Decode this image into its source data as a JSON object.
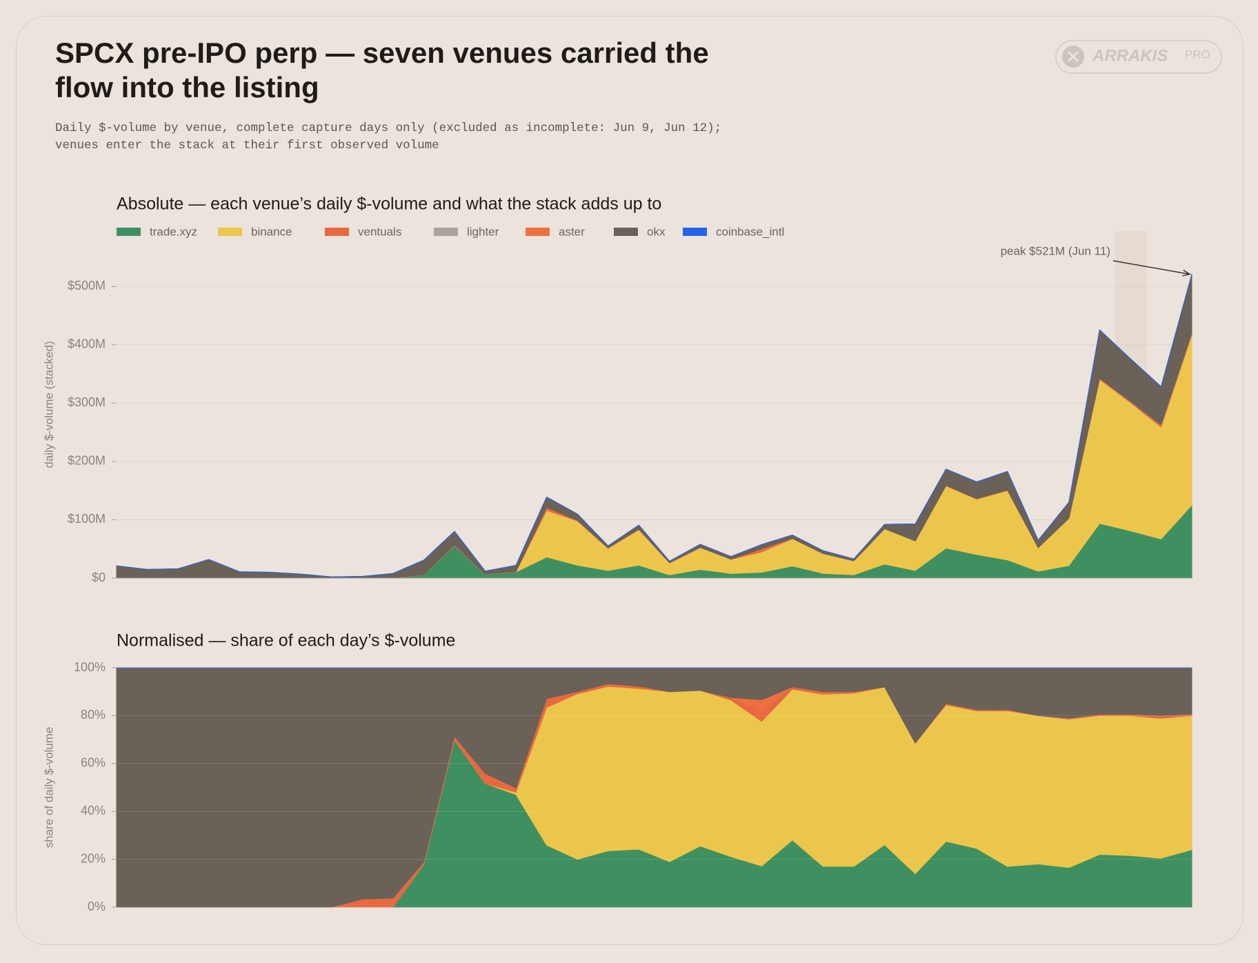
{
  "header": {
    "title": "SPCX pre-IPO perp — seven venues carried the flow into the listing",
    "subtitle": "Daily $-volume by venue, complete capture days only (excluded as incomplete: Jun 9, Jun 12); venues enter the stack at their first observed volume"
  },
  "brand": {
    "name": "ARRAKIS",
    "badge": "PRO"
  },
  "chart_data": [
    {
      "type": "stacked_area",
      "title": "Absolute — each venue’s daily $-volume and what the stack adds up to",
      "ylabel": "daily $-volume (stacked)",
      "annotation": "peak $521M (Jun 11)",
      "categories": [
        null,
        null,
        null,
        null,
        null,
        null,
        null,
        null,
        null,
        null,
        null,
        null,
        null,
        null,
        null,
        null,
        null,
        null,
        null,
        null,
        null,
        null,
        null,
        null,
        null,
        null,
        null,
        null,
        null,
        null,
        null,
        null,
        null,
        null,
        null,
        null
      ],
      "series": [
        {
          "name": "trade.xyz",
          "color": "#3f9060",
          "values": [
            0,
            0,
            0,
            0,
            0,
            0,
            0,
            0,
            0,
            0,
            5.5,
            56,
            6.2,
            10.3,
            36,
            22,
            13,
            22,
            5.5,
            14.8,
            7.8,
            9.9,
            20.7,
            8,
            5.6,
            24,
            13,
            51.4,
            40.4,
            31.1,
            11.7,
            21.5,
            93.7,
            81,
            67,
            125
          ]
        },
        {
          "name": "binance",
          "color": "#ecc64a",
          "values": [
            0,
            0,
            0,
            0,
            0,
            0,
            0,
            0,
            0,
            0,
            0,
            0,
            0,
            0.2,
            80,
            76,
            38,
            61,
            20.6,
            37.7,
            24.2,
            34.8,
            46.6,
            33.8,
            23.8,
            60.7,
            50.7,
            106.6,
            94.9,
            119,
            40.3,
            80.6,
            247,
            220,
            192,
            292
          ]
        },
        {
          "name": "ventuals",
          "color": "#e8693f",
          "values": [
            0,
            0,
            0,
            0,
            0,
            0,
            0,
            0,
            0.1,
            0.3,
            0.3,
            1.2,
            0.5,
            0.4,
            5,
            1,
            0.6,
            0.9,
            0,
            0,
            0.4,
            2.6,
            0.7,
            0.5,
            0.2,
            0,
            0,
            1,
            0.8,
            0.9,
            0,
            0.6,
            2,
            2,
            3.3,
            2.6
          ]
        },
        {
          "name": "lighter",
          "color": "#aca39b",
          "values": [
            0,
            0,
            0,
            0,
            0,
            0,
            0,
            0,
            0,
            0,
            0,
            0,
            0,
            0,
            0,
            0,
            0,
            0,
            0,
            0,
            0,
            0,
            0,
            0,
            0,
            0,
            0,
            0,
            0,
            0,
            0,
            0,
            0,
            0.3,
            0.5,
            0.5
          ]
        },
        {
          "name": "aster",
          "color": "#ee7040",
          "values": [
            0,
            0,
            0,
            0,
            0,
            0,
            0,
            0,
            0,
            0,
            0,
            0,
            0,
            0,
            0,
            0,
            0,
            0,
            0,
            0,
            0,
            2.6,
            0,
            0,
            0,
            0,
            0,
            0,
            0,
            0,
            0,
            0,
            0,
            0,
            0,
            0
          ]
        },
        {
          "name": "okx",
          "color": "#6a6158",
          "values": [
            21,
            15,
            16,
            32,
            11,
            10,
            7,
            2,
            2.9,
            7.7,
            25,
            23,
            5.3,
            11,
            18,
            11,
            3.7,
            7,
            2.9,
            5.5,
            4.6,
            7.7,
            5.9,
            4.7,
            3.3,
            7.4,
            29.3,
            28,
            28.9,
            32,
            13,
            27.3,
            83,
            73,
            65.6,
            101
          ]
        },
        {
          "name": "coinbase_intl",
          "color": "#2563eb",
          "values": [
            0,
            0,
            0,
            0,
            0,
            0,
            0,
            0,
            0,
            0,
            0,
            0,
            0,
            0,
            0,
            0,
            0,
            0,
            0,
            0,
            0,
            0,
            0,
            0,
            0,
            0,
            0,
            0,
            0,
            0,
            0,
            0,
            0,
            0,
            0,
            0
          ]
        }
      ],
      "ylim": [
        0,
        595
      ],
      "yticks": [
        {
          "value": 0,
          "label": "$0"
        },
        {
          "value": 100,
          "label": "$100M"
        },
        {
          "value": 200,
          "label": "$200M"
        },
        {
          "value": 300,
          "label": "$300M"
        },
        {
          "value": 400,
          "label": "$400M"
        },
        {
          "value": 500,
          "label": "$500M"
        }
      ],
      "grid": true,
      "legend": "top-left"
    },
    {
      "type": "stacked_area_share",
      "title": "Normalised — share of each day’s $-volume",
      "ylabel": "share of daily $-volume",
      "ylim": [
        0,
        100
      ],
      "yticks": [
        {
          "value": 0,
          "label": "0%"
        },
        {
          "value": 20,
          "label": "20%"
        },
        {
          "value": 40,
          "label": "40%"
        },
        {
          "value": 60,
          "label": "60%"
        },
        {
          "value": 80,
          "label": "80%"
        },
        {
          "value": 100,
          "label": "100%"
        }
      ],
      "grid": true
    }
  ]
}
